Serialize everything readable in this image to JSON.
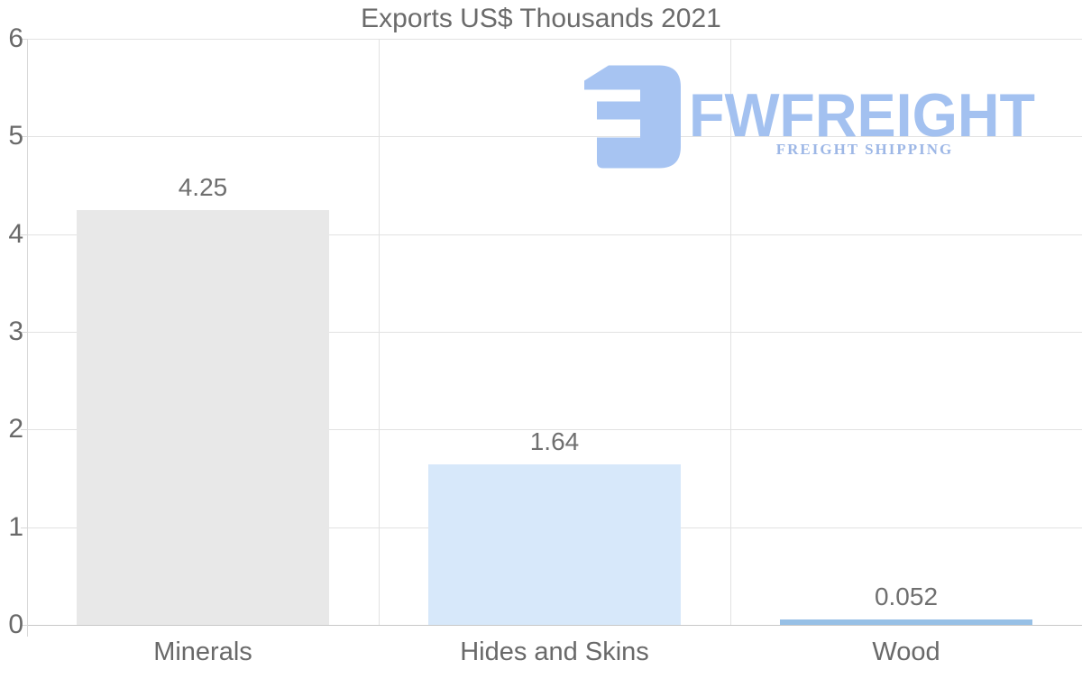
{
  "chart_data": {
    "type": "bar",
    "title": "Exports US$ Thousands 2021",
    "categories": [
      "Minerals",
      "Hides and Skins",
      "Wood"
    ],
    "values": [
      4.25,
      1.64,
      0.052
    ],
    "value_labels": [
      "4.25",
      "1.64",
      "0.052"
    ],
    "bar_colors": [
      "#e8e8e8",
      "#d7e8fa",
      "#97c0e6"
    ],
    "ylim": [
      0,
      6
    ],
    "yticks": [
      0,
      1,
      2,
      3,
      4,
      5,
      6
    ],
    "xlabel": "",
    "ylabel": "",
    "grid": true,
    "legend": false
  },
  "watermark": {
    "brand": "FWFREIGHT",
    "tagline": "FREIGHT SHIPPING",
    "logo_icon": "fwfreight-mark-icon",
    "mark_color": "#a7c4f2",
    "brand_color": "#a3c1f0",
    "tagline_color": "#9db7e6"
  },
  "colors": {
    "background": "#ffffff",
    "title_text": "#6b6b6b",
    "axis_text": "#696969",
    "value_text": "#6f6f6f",
    "gridline": "#e2e2e2",
    "baseline": "#c8c8c8",
    "axis_line": "#d9d9d9"
  }
}
